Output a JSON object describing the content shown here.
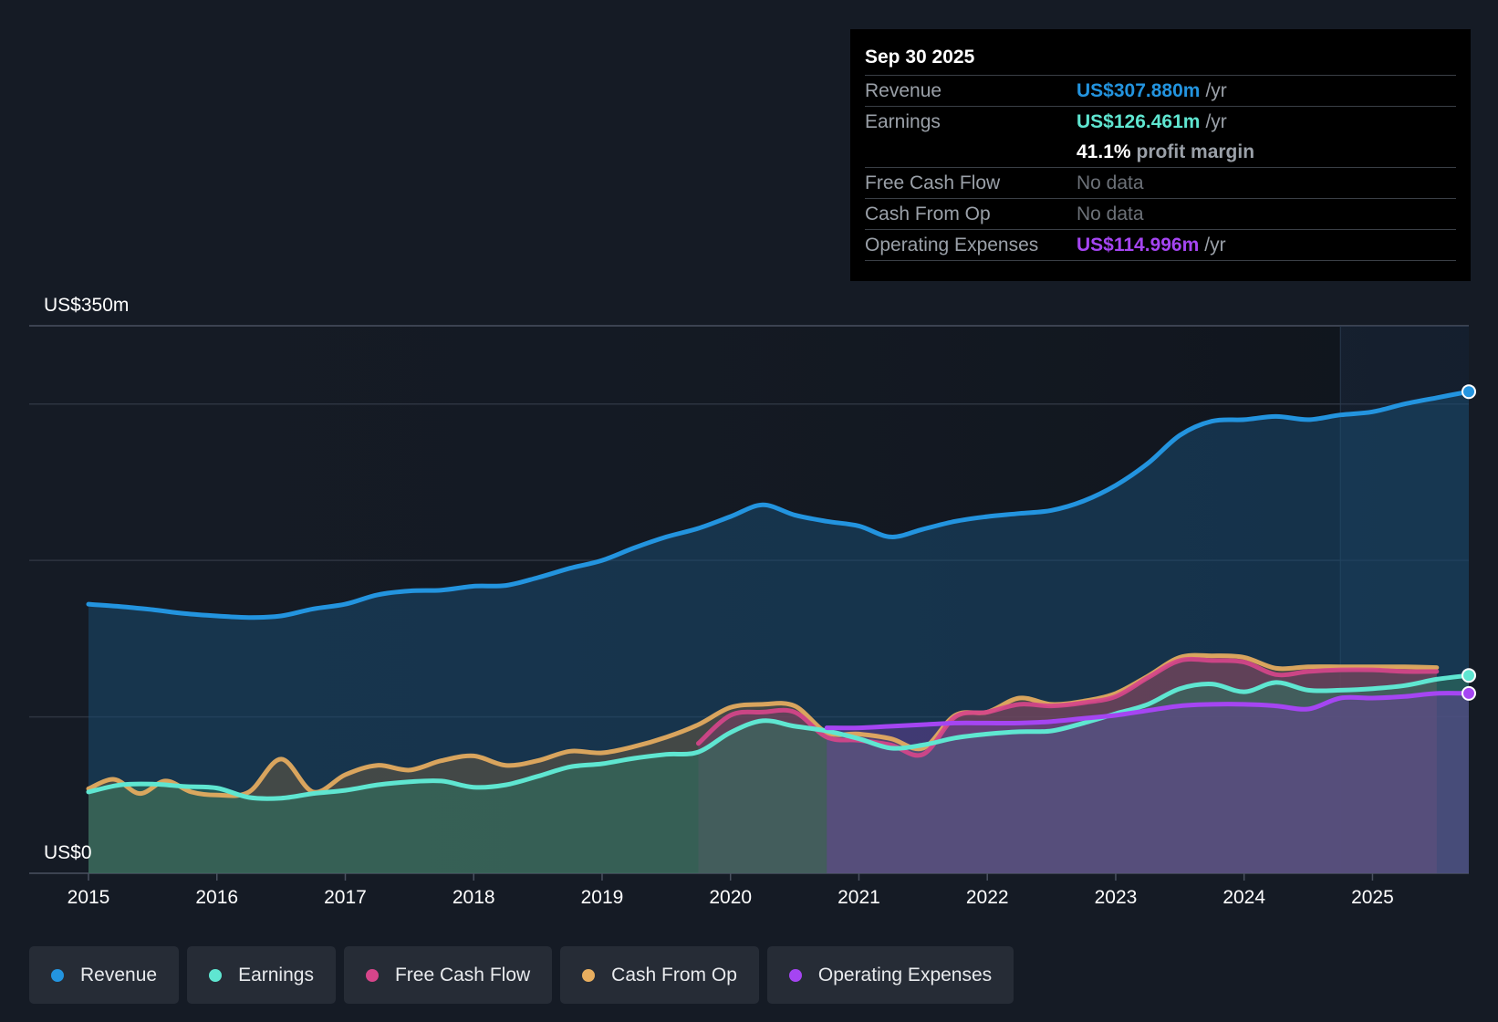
{
  "chart_data": {
    "type": "area",
    "title": "",
    "y_axis": {
      "min": 0,
      "max": 350,
      "top_label": "US$350m",
      "bottom_label": "US$0",
      "gridlines": [
        0,
        100,
        200,
        300,
        350
      ]
    },
    "x_axis": {
      "ticks": [
        "2015",
        "2016",
        "2017",
        "2018",
        "2019",
        "2020",
        "2021",
        "2022",
        "2023",
        "2024",
        "2025"
      ],
      "range": [
        2015.0,
        2025.75
      ]
    },
    "series": [
      {
        "name": "Revenue",
        "color": "#2394df",
        "points": [
          [
            2015.0,
            172
          ],
          [
            2015.25,
            170.5
          ],
          [
            2015.5,
            168.5
          ],
          [
            2015.75,
            166
          ],
          [
            2016.0,
            164.5
          ],
          [
            2016.25,
            163.5
          ],
          [
            2016.5,
            164.5
          ],
          [
            2016.75,
            169
          ],
          [
            2017.0,
            172
          ],
          [
            2017.25,
            178
          ],
          [
            2017.5,
            180.5
          ],
          [
            2017.75,
            181
          ],
          [
            2018.0,
            183.5
          ],
          [
            2018.25,
            184
          ],
          [
            2018.5,
            189
          ],
          [
            2018.75,
            195
          ],
          [
            2019.0,
            200
          ],
          [
            2019.25,
            208
          ],
          [
            2019.5,
            215
          ],
          [
            2019.75,
            220.5
          ],
          [
            2020.0,
            228
          ],
          [
            2020.25,
            235.5
          ],
          [
            2020.5,
            229
          ],
          [
            2020.75,
            225
          ],
          [
            2021.0,
            222
          ],
          [
            2021.25,
            215
          ],
          [
            2021.5,
            220
          ],
          [
            2021.75,
            225
          ],
          [
            2022.0,
            228
          ],
          [
            2022.25,
            230
          ],
          [
            2022.5,
            232
          ],
          [
            2022.75,
            238
          ],
          [
            2023.0,
            248
          ],
          [
            2023.25,
            262
          ],
          [
            2023.5,
            280
          ],
          [
            2023.75,
            289
          ],
          [
            2024.0,
            290
          ],
          [
            2024.25,
            292
          ],
          [
            2024.5,
            290
          ],
          [
            2024.75,
            293
          ],
          [
            2025.0,
            295
          ],
          [
            2025.25,
            300
          ],
          [
            2025.5,
            304
          ],
          [
            2025.75,
            307.88
          ]
        ]
      },
      {
        "name": "Earnings",
        "color": "#5fe6d1",
        "points": [
          [
            2015.0,
            52
          ],
          [
            2015.25,
            56.5
          ],
          [
            2015.5,
            57
          ],
          [
            2015.75,
            55.5
          ],
          [
            2016.0,
            54.5
          ],
          [
            2016.25,
            48.5
          ],
          [
            2016.5,
            48
          ],
          [
            2016.75,
            51
          ],
          [
            2017.0,
            53
          ],
          [
            2017.25,
            56.5
          ],
          [
            2017.5,
            58.5
          ],
          [
            2017.75,
            59
          ],
          [
            2018.0,
            55
          ],
          [
            2018.25,
            56.5
          ],
          [
            2018.5,
            62
          ],
          [
            2018.75,
            68
          ],
          [
            2019.0,
            70
          ],
          [
            2019.25,
            73.5
          ],
          [
            2019.5,
            76
          ],
          [
            2019.75,
            77.5
          ],
          [
            2020.0,
            90
          ],
          [
            2020.25,
            97.5
          ],
          [
            2020.5,
            94
          ],
          [
            2020.75,
            91
          ],
          [
            2021.0,
            86
          ],
          [
            2021.25,
            80
          ],
          [
            2021.5,
            82
          ],
          [
            2021.75,
            86.5
          ],
          [
            2022.0,
            89
          ],
          [
            2022.25,
            90.5
          ],
          [
            2022.5,
            91
          ],
          [
            2022.75,
            96
          ],
          [
            2023.0,
            102
          ],
          [
            2023.25,
            108
          ],
          [
            2023.5,
            118
          ],
          [
            2023.75,
            121
          ],
          [
            2024.0,
            116
          ],
          [
            2024.25,
            122
          ],
          [
            2024.5,
            117
          ],
          [
            2024.75,
            117
          ],
          [
            2025.0,
            118
          ],
          [
            2025.25,
            120
          ],
          [
            2025.5,
            124
          ],
          [
            2025.75,
            126.461
          ]
        ]
      },
      {
        "name": "Free Cash Flow",
        "color": "#d6458a",
        "points": [
          [
            2019.75,
            83
          ],
          [
            2020.0,
            101
          ],
          [
            2020.25,
            103
          ],
          [
            2020.5,
            103
          ],
          [
            2020.75,
            87
          ],
          [
            2021.0,
            85
          ],
          [
            2021.25,
            82
          ],
          [
            2021.5,
            76
          ],
          [
            2021.75,
            100
          ],
          [
            2022.0,
            103
          ],
          [
            2022.25,
            108
          ],
          [
            2022.5,
            107
          ],
          [
            2022.75,
            109
          ],
          [
            2023.0,
            113
          ],
          [
            2023.25,
            125
          ],
          [
            2023.5,
            136
          ],
          [
            2023.75,
            136
          ],
          [
            2024.0,
            135
          ],
          [
            2024.25,
            127
          ],
          [
            2024.5,
            129
          ],
          [
            2024.75,
            130
          ],
          [
            2025.0,
            130
          ],
          [
            2025.25,
            129
          ],
          [
            2025.5,
            129
          ]
        ]
      },
      {
        "name": "Cash From Op",
        "color": "#e8ae5f",
        "points": [
          [
            2015.0,
            54
          ],
          [
            2015.2,
            60
          ],
          [
            2015.4,
            51
          ],
          [
            2015.6,
            59
          ],
          [
            2015.8,
            52
          ],
          [
            2016.0,
            50
          ],
          [
            2016.25,
            52
          ],
          [
            2016.5,
            73
          ],
          [
            2016.75,
            52
          ],
          [
            2017.0,
            63
          ],
          [
            2017.25,
            69
          ],
          [
            2017.5,
            66
          ],
          [
            2017.75,
            72
          ],
          [
            2018.0,
            75
          ],
          [
            2018.25,
            69
          ],
          [
            2018.5,
            72
          ],
          [
            2018.75,
            78
          ],
          [
            2019.0,
            77
          ],
          [
            2019.25,
            81
          ],
          [
            2019.5,
            87
          ],
          [
            2019.75,
            95
          ],
          [
            2020.0,
            106
          ],
          [
            2020.25,
            108
          ],
          [
            2020.5,
            107
          ],
          [
            2020.75,
            90
          ],
          [
            2021.0,
            89
          ],
          [
            2021.25,
            86
          ],
          [
            2021.5,
            80
          ],
          [
            2021.75,
            101
          ],
          [
            2022.0,
            103
          ],
          [
            2022.25,
            112
          ],
          [
            2022.5,
            108
          ],
          [
            2022.75,
            110
          ],
          [
            2023.0,
            115
          ],
          [
            2023.25,
            126
          ],
          [
            2023.5,
            138
          ],
          [
            2023.75,
            139
          ],
          [
            2024.0,
            138
          ],
          [
            2024.25,
            131
          ],
          [
            2024.5,
            132
          ],
          [
            2024.75,
            132
          ],
          [
            2025.0,
            132
          ],
          [
            2025.25,
            132
          ],
          [
            2025.5,
            131.5
          ]
        ]
      },
      {
        "name": "Operating Expenses",
        "color": "#a545f2",
        "points": [
          [
            2020.75,
            93
          ],
          [
            2021.0,
            93
          ],
          [
            2021.25,
            94
          ],
          [
            2021.5,
            95
          ],
          [
            2021.75,
            96
          ],
          [
            2022.0,
            96
          ],
          [
            2022.25,
            96
          ],
          [
            2022.5,
            97
          ],
          [
            2022.75,
            99
          ],
          [
            2023.0,
            101
          ],
          [
            2023.25,
            104
          ],
          [
            2023.5,
            107
          ],
          [
            2023.75,
            108
          ],
          [
            2024.0,
            108
          ],
          [
            2024.25,
            107
          ],
          [
            2024.5,
            105
          ],
          [
            2024.75,
            112
          ],
          [
            2025.0,
            112
          ],
          [
            2025.25,
            113
          ],
          [
            2025.5,
            115
          ],
          [
            2025.75,
            114.996
          ]
        ]
      }
    ],
    "highlight_region_start": 2024.75,
    "legend_position": "bottom-left"
  },
  "tooltip": {
    "date": "Sep 30 2025",
    "revenue_label": "Revenue",
    "revenue_value": "US$307.880m",
    "earnings_label": "Earnings",
    "earnings_value": "US$126.461m",
    "margin_value": "41.1%",
    "margin_text": "profit margin",
    "fcf_label": "Free Cash Flow",
    "fcf_value": "No data",
    "cfo_label": "Cash From Op",
    "cfo_value": "No data",
    "opex_label": "Operating Expenses",
    "opex_value": "US$114.996m",
    "unit": "/yr"
  },
  "legend": [
    {
      "label": "Revenue",
      "color": "#2394df"
    },
    {
      "label": "Earnings",
      "color": "#5fe6d1"
    },
    {
      "label": "Free Cash Flow",
      "color": "#d6458a"
    },
    {
      "label": "Cash From Op",
      "color": "#e8ae5f"
    },
    {
      "label": "Operating Expenses",
      "color": "#a545f2"
    }
  ]
}
